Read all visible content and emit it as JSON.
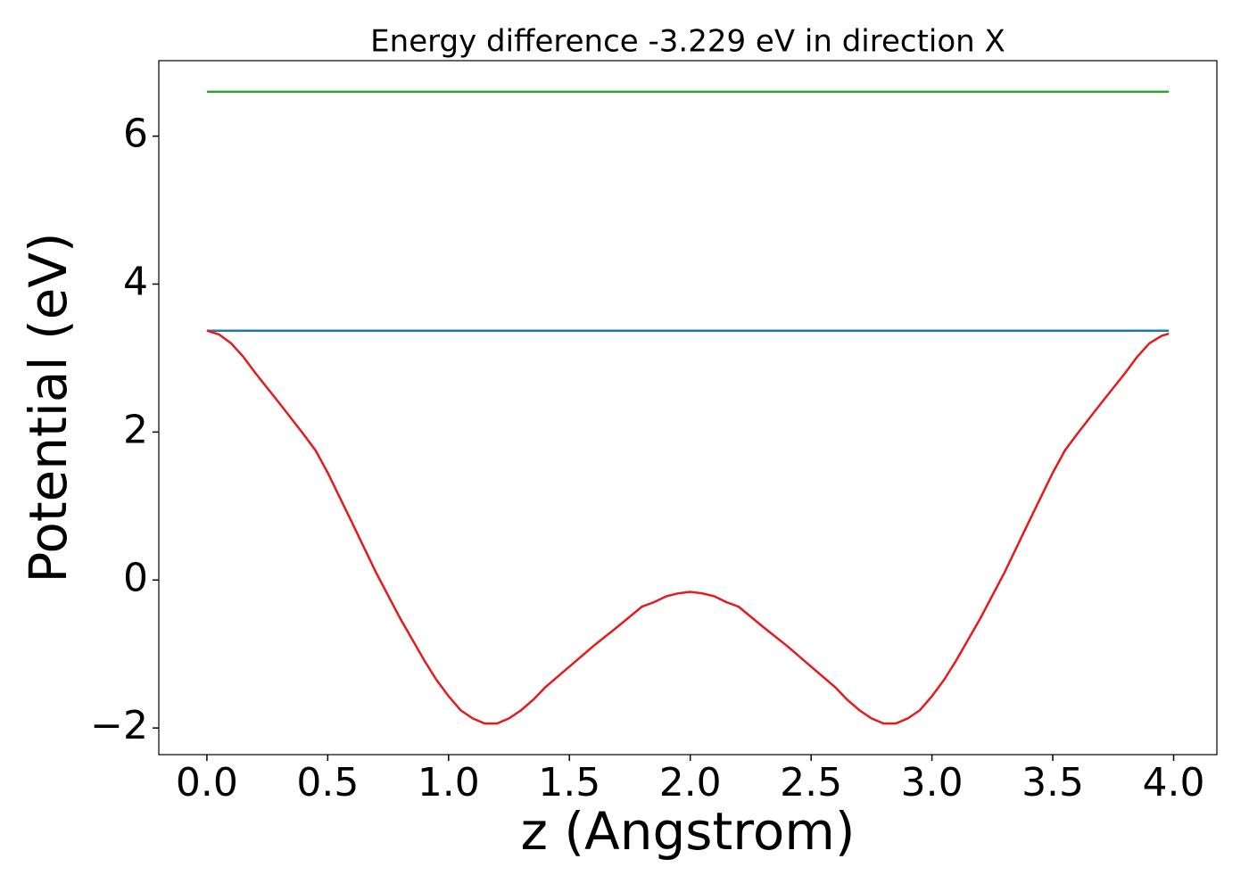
{
  "chart_data": {
    "type": "line",
    "title": "Energy difference -3.229 eV in direction X",
    "xlabel": "z (Angstrom)",
    "ylabel": "Potential (eV)",
    "xlim": [
      -0.199,
      4.179
    ],
    "ylim": [
      -2.36,
      7.02
    ],
    "xticks": [
      {
        "value": 0,
        "label": "0.0"
      },
      {
        "value": 0.5,
        "label": "0.5"
      },
      {
        "value": 1,
        "label": "1.0"
      },
      {
        "value": 1.5,
        "label": "1.5"
      },
      {
        "value": 2,
        "label": "2.0"
      },
      {
        "value": 2.5,
        "label": "2.5"
      },
      {
        "value": 3,
        "label": "3.0"
      },
      {
        "value": 3.5,
        "label": "3.5"
      },
      {
        "value": 4,
        "label": "4.0"
      }
    ],
    "yticks": [
      {
        "value": -2,
        "label": "−2"
      },
      0,
      2,
      4,
      6
    ],
    "series": [
      {
        "color": "#2ca02c",
        "x": [
          0,
          3.98
        ],
        "values": [
          6.6,
          6.6
        ]
      },
      {
        "color": "#1f77b4",
        "x": [
          0,
          3.98
        ],
        "values": [
          3.37,
          3.37
        ]
      },
      {
        "color": "#e41a1c",
        "x": [
          0,
          0.05,
          0.1,
          0.15,
          0.2,
          0.3,
          0.4,
          0.45,
          0.5,
          0.6,
          0.7,
          0.8,
          0.9,
          0.95,
          1.0,
          1.05,
          1.1,
          1.15,
          1.2,
          1.25,
          1.3,
          1.35,
          1.4,
          1.5,
          1.6,
          1.7,
          1.8,
          1.85,
          1.9,
          1.95,
          2.0,
          2.05,
          2.1,
          2.15,
          2.2,
          2.3,
          2.4,
          2.5,
          2.6,
          2.65,
          2.7,
          2.75,
          2.8,
          2.85,
          2.9,
          2.95,
          3.0,
          3.05,
          3.1,
          3.2,
          3.3,
          3.4,
          3.5,
          3.55,
          3.6,
          3.7,
          3.8,
          3.85,
          3.9,
          3.95,
          3.98
        ],
        "values": [
          3.37,
          3.32,
          3.2,
          3.02,
          2.8,
          2.39,
          1.97,
          1.75,
          1.45,
          0.78,
          0.1,
          -0.52,
          -1.09,
          -1.35,
          -1.57,
          -1.76,
          -1.87,
          -1.94,
          -1.94,
          -1.87,
          -1.76,
          -1.62,
          -1.45,
          -1.17,
          -0.89,
          -0.63,
          -0.36,
          -0.3,
          -0.22,
          -0.18,
          -0.16,
          -0.18,
          -0.22,
          -0.3,
          -0.36,
          -0.63,
          -0.89,
          -1.17,
          -1.45,
          -1.62,
          -1.76,
          -1.87,
          -1.94,
          -1.94,
          -1.87,
          -1.76,
          -1.57,
          -1.35,
          -1.09,
          -0.52,
          0.1,
          0.78,
          1.45,
          1.75,
          1.97,
          2.39,
          2.8,
          3.02,
          3.2,
          3.3,
          3.33
        ]
      }
    ]
  }
}
